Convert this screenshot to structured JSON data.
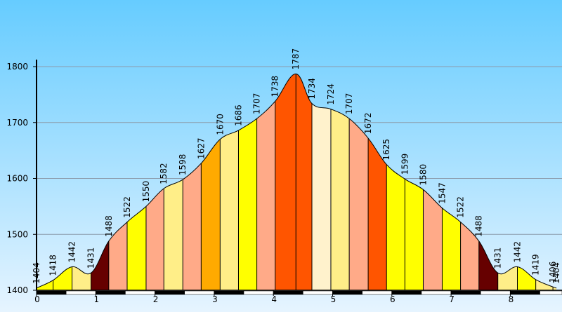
{
  "chart_data": {
    "type": "area",
    "title": "",
    "xlabel": "",
    "ylabel": "",
    "xlim": [
      0,
      8.75
    ],
    "ylim": [
      1400,
      1800
    ],
    "x_ticks": [
      {
        "value": 0,
        "label": "0"
      },
      {
        "value": 1,
        "label": "1"
      },
      {
        "value": 2,
        "label": "2"
      },
      {
        "value": 3,
        "label": "3"
      },
      {
        "value": 4,
        "label": "4"
      },
      {
        "value": 5,
        "label": "5"
      },
      {
        "value": 6,
        "label": "6"
      },
      {
        "value": 7,
        "label": "7"
      },
      {
        "value": 8,
        "label": "8"
      }
    ],
    "y_ticks": [
      {
        "value": 1400,
        "label": "1400"
      },
      {
        "value": 1500,
        "label": "1500"
      },
      {
        "value": 1600,
        "label": "1600"
      },
      {
        "value": 1700,
        "label": "1700"
      },
      {
        "value": 1800,
        "label": "1800"
      }
    ],
    "grid": true,
    "points": [
      {
        "x": 0.0,
        "y": 1404,
        "label": "1404"
      },
      {
        "x": 0.28,
        "y": 1418,
        "label": "1418"
      },
      {
        "x": 0.6,
        "y": 1442,
        "label": "1442"
      },
      {
        "x": 0.92,
        "y": 1431,
        "label": "1431"
      },
      {
        "x": 1.22,
        "y": 1488,
        "label": "1488"
      },
      {
        "x": 1.53,
        "y": 1522,
        "label": "1522"
      },
      {
        "x": 1.85,
        "y": 1550,
        "label": "1550"
      },
      {
        "x": 2.15,
        "y": 1582,
        "label": "1582"
      },
      {
        "x": 2.47,
        "y": 1598,
        "label": "1598"
      },
      {
        "x": 2.78,
        "y": 1627,
        "label": "1627"
      },
      {
        "x": 3.1,
        "y": 1670,
        "label": "1670"
      },
      {
        "x": 3.41,
        "y": 1686,
        "label": "1686"
      },
      {
        "x": 3.72,
        "y": 1707,
        "label": "1707"
      },
      {
        "x": 4.03,
        "y": 1738,
        "label": "1738"
      },
      {
        "x": 4.38,
        "y": 1787,
        "label": "1787"
      },
      {
        "x": 4.65,
        "y": 1734,
        "label": "1734"
      },
      {
        "x": 4.97,
        "y": 1724,
        "label": "1724"
      },
      {
        "x": 5.28,
        "y": 1707,
        "label": "1707"
      },
      {
        "x": 5.6,
        "y": 1672,
        "label": "1672"
      },
      {
        "x": 5.91,
        "y": 1625,
        "label": "1625"
      },
      {
        "x": 6.22,
        "y": 1599,
        "label": "1599"
      },
      {
        "x": 6.53,
        "y": 1580,
        "label": "1580"
      },
      {
        "x": 6.85,
        "y": 1547,
        "label": "1547"
      },
      {
        "x": 7.16,
        "y": 1522,
        "label": "1522"
      },
      {
        "x": 7.47,
        "y": 1488,
        "label": "1488"
      },
      {
        "x": 7.79,
        "y": 1431,
        "label": "1431"
      },
      {
        "x": 8.12,
        "y": 1442,
        "label": "1442"
      },
      {
        "x": 8.43,
        "y": 1419,
        "label": "1419"
      },
      {
        "x": 8.72,
        "y": 1406,
        "label": "1406"
      },
      {
        "x": 8.78,
        "y": 1404,
        "label": "1404"
      }
    ],
    "segment_colors": [
      "#FFFF00",
      "#FFFF00",
      "#FFEE88",
      "#660000",
      "#FFAA88",
      "#FFFF00",
      "#FFAA88",
      "#FFEE88",
      "#FFAA88",
      "#FFAA00",
      "#FFEE88",
      "#FFFF00",
      "#FFAA88",
      "#FF5500",
      "#FF5500",
      "#FFF2CC",
      "#FFEE88",
      "#FFAA88",
      "#FF5500",
      "#FFFF00",
      "#FFFF00",
      "#FFAA88",
      "#FFFF00",
      "#FFAA88",
      "#660000",
      "#FFEE88",
      "#FFFF00",
      "#FFEE88",
      "#FFEE88"
    ],
    "colors": {
      "sky_top": "#66CCFF",
      "sky_bottom": "#E6F4FF",
      "grid": "#8C9CAC",
      "outline": "#000000"
    }
  }
}
